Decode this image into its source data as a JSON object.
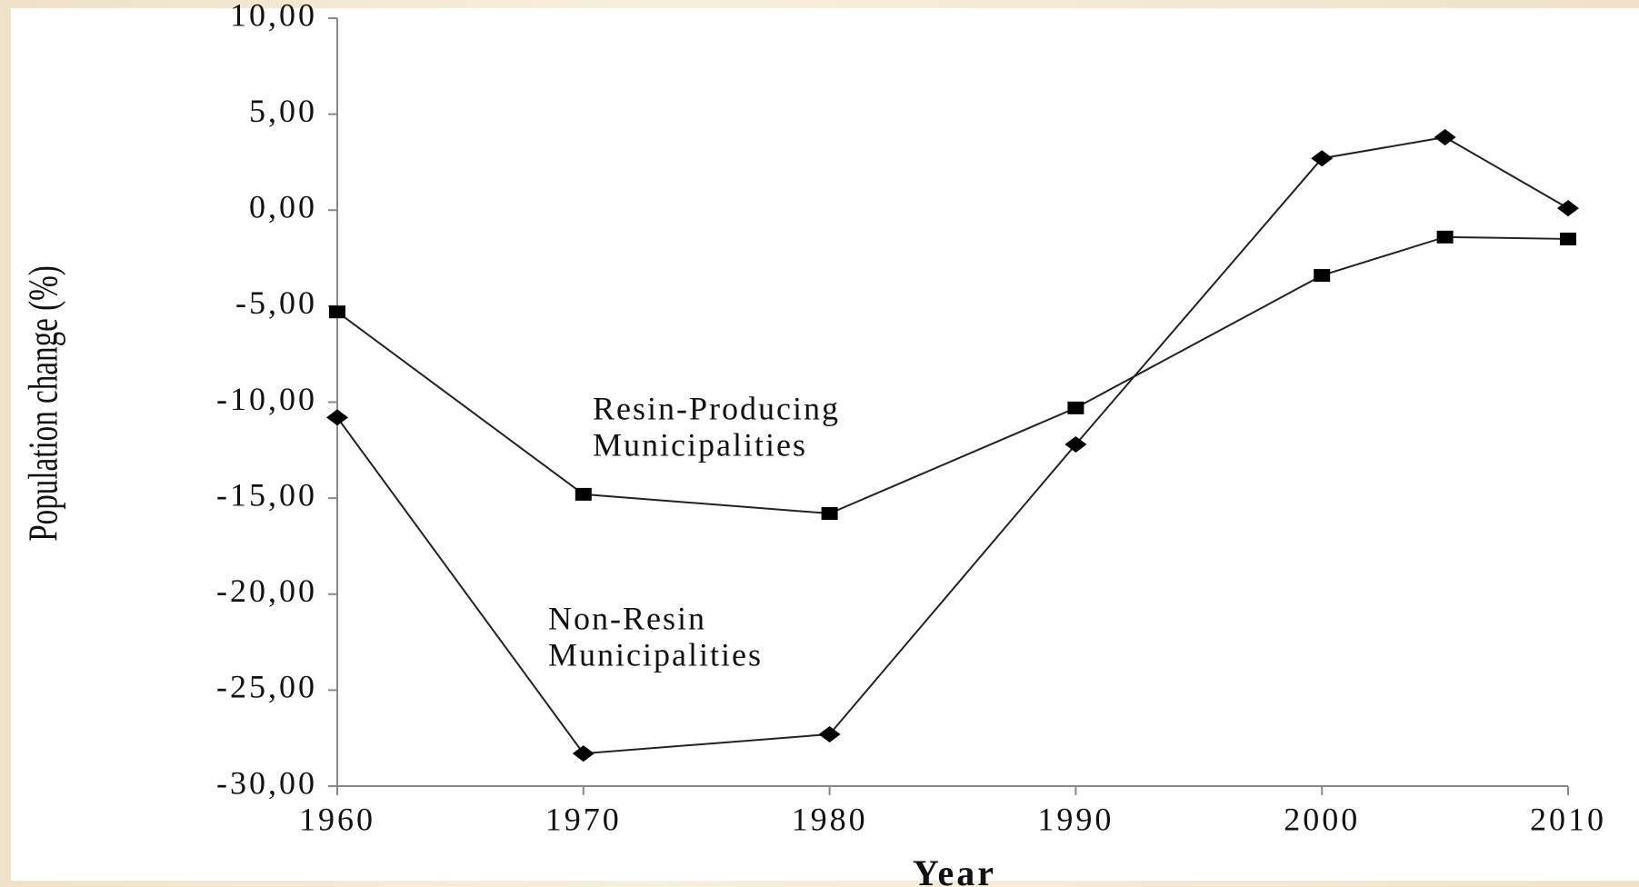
{
  "chart_data": {
    "type": "line",
    "xlabel": "Year",
    "ylabel": "Population change (%)",
    "x": [
      1960,
      1970,
      1980,
      1990,
      2000,
      2005,
      2010
    ],
    "series": [
      {
        "color": "#222222",
        "marker": "square",
        "values": [
          -5.3,
          -14.8,
          -15.8,
          -10.3,
          -3.4,
          -1.4,
          -1.5
        ]
      },
      {
        "color": "#222222",
        "marker": "diamond",
        "values": [
          -10.8,
          -28.3,
          -27.3,
          -12.2,
          2.7,
          3.8,
          0.1
        ]
      }
    ],
    "annotations": [
      [
        "Resin-Producing",
        "Municipalities"
      ],
      [
        "Non-Resin",
        "Municipalities"
      ]
    ],
    "xlim": [
      1960,
      2010
    ],
    "xticks": [
      1960,
      1970,
      1980,
      1990,
      2000,
      2010
    ],
    "ylim": [
      -30,
      10
    ],
    "yticks": [
      {
        "value": 10,
        "label": "10,00"
      },
      {
        "value": 5,
        "label": "5,00"
      },
      {
        "value": 0,
        "label": "0,00"
      },
      {
        "value": -5,
        "label": "-5,00"
      },
      {
        "value": -10,
        "label": "-10,00"
      },
      {
        "value": -15,
        "label": "-15,00"
      },
      {
        "value": -20,
        "label": "-20,00"
      },
      {
        "value": -25,
        "label": "-25,00"
      },
      {
        "value": -30,
        "label": "-30,00"
      }
    ]
  }
}
